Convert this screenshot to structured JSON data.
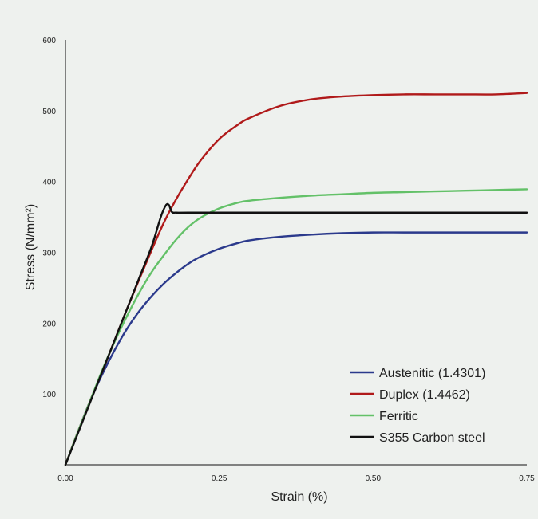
{
  "chart_data": {
    "type": "line",
    "title": "",
    "xlabel": "Strain (%)",
    "ylabel": "Stress (N/mm²)",
    "xlim": [
      0,
      0.75
    ],
    "ylim": [
      0,
      600
    ],
    "xticks": [
      "0.00",
      "0.25",
      "0.50",
      "0.75"
    ],
    "yticks": [
      "100",
      "200",
      "300",
      "400",
      "500",
      "600"
    ],
    "grid": false,
    "legend_position": "bottom-right",
    "series": [
      {
        "name": "Austenitic (1.4301)",
        "color": "#2b3a8c",
        "x": [
          0,
          0.02,
          0.04,
          0.06,
          0.08,
          0.1,
          0.12,
          0.14,
          0.16,
          0.18,
          0.2,
          0.22,
          0.25,
          0.28,
          0.3,
          0.35,
          0.4,
          0.45,
          0.5,
          0.55,
          0.6,
          0.65,
          0.7,
          0.75
        ],
        "y": [
          0,
          46,
          90,
          128,
          162,
          192,
          217,
          238,
          256,
          271,
          284,
          294,
          305,
          313,
          317,
          322,
          325,
          327,
          328,
          328,
          328,
          328,
          328,
          328
        ]
      },
      {
        "name": "Duplex (1.4462)",
        "color": "#b01a1a",
        "x": [
          0,
          0.02,
          0.04,
          0.06,
          0.08,
          0.1,
          0.12,
          0.14,
          0.16,
          0.18,
          0.2,
          0.22,
          0.25,
          0.28,
          0.3,
          0.35,
          0.4,
          0.45,
          0.5,
          0.55,
          0.6,
          0.65,
          0.7,
          0.75
        ],
        "y": [
          0,
          46,
          90,
          132,
          176,
          220,
          262,
          303,
          342,
          375,
          404,
          430,
          460,
          480,
          490,
          507,
          516,
          520,
          522,
          523,
          523,
          523,
          523,
          525
        ]
      },
      {
        "name": "Ferritic",
        "color": "#63c168",
        "x": [
          0,
          0.02,
          0.04,
          0.06,
          0.08,
          0.1,
          0.12,
          0.14,
          0.16,
          0.18,
          0.2,
          0.22,
          0.25,
          0.28,
          0.3,
          0.35,
          0.4,
          0.45,
          0.5,
          0.55,
          0.6,
          0.65,
          0.7,
          0.75
        ],
        "y": [
          0,
          46,
          90,
          134,
          174,
          210,
          243,
          272,
          296,
          318,
          336,
          349,
          362,
          370,
          373,
          377,
          380,
          382,
          384,
          385,
          386,
          387,
          388,
          389
        ]
      },
      {
        "name": "S355 Carbon steel",
        "color": "#111111",
        "x": [
          0,
          0.02,
          0.04,
          0.06,
          0.08,
          0.1,
          0.12,
          0.14,
          0.155,
          0.163,
          0.168,
          0.173,
          0.18,
          0.2,
          0.3,
          0.4,
          0.5,
          0.6,
          0.7,
          0.75
        ],
        "y": [
          0,
          44,
          88,
          132,
          176,
          220,
          264,
          308,
          350,
          366,
          367,
          357,
          356,
          356,
          356,
          356,
          356,
          356,
          356,
          356
        ]
      }
    ]
  }
}
